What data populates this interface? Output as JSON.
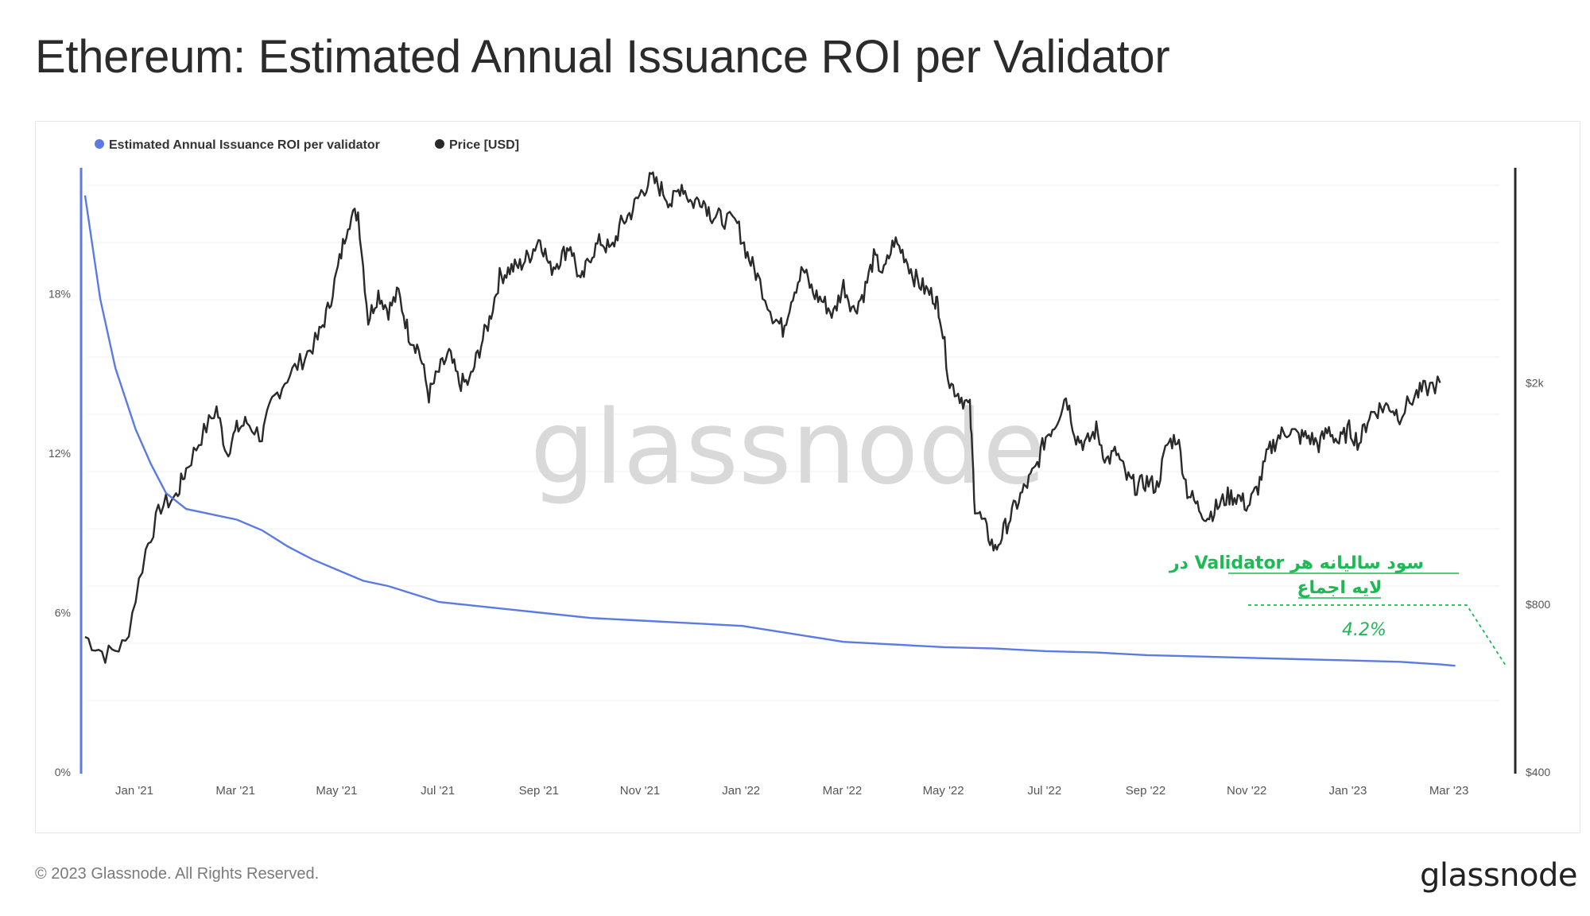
{
  "title": "Ethereum: Estimated Annual Issuance ROI per Validator",
  "footer": {
    "copyright": "© 2023 Glassnode. All Rights Reserved.",
    "logo": "glassnode"
  },
  "watermark": "glassnode",
  "annotation": {
    "line1": "سود سالیانه هر Validator در",
    "line2": "لایه اجماع",
    "value_label": "4.2%",
    "color": "#1db954"
  },
  "colors": {
    "roi": "#5b7be3",
    "price": "#2a2a2a",
    "grid": "#ececec",
    "watermark": "#d9d9d9"
  },
  "chart_data": {
    "type": "line",
    "title": "Ethereum: Estimated Annual Issuance ROI per Validator",
    "legend": [
      {
        "name": "Estimated Annual Issuance ROI per validator",
        "color": "#5b7be3"
      },
      {
        "name": "Price [USD]",
        "color": "#2a2a2a"
      }
    ],
    "x_labels": [
      "Jan '21",
      "Mar '21",
      "May '21",
      "Jul '21",
      "Sep '21",
      "Nov '21",
      "Jan '22",
      "Mar '22",
      "May '22",
      "Jul '22",
      "Sep '22",
      "Nov '22",
      "Jan '23",
      "Mar '23"
    ],
    "left_axis": {
      "ticks": [
        "0%",
        "6%",
        "12%",
        "18%"
      ],
      "range": [
        0,
        22
      ]
    },
    "right_axis": {
      "ticks": [
        "$400",
        "$800",
        "$2k"
      ],
      "values": [
        400,
        800,
        2000
      ],
      "range": [
        400,
        4600
      ],
      "scale": "log"
    },
    "series": [
      {
        "name": "Estimated Annual Issuance ROI per validator",
        "axis": "left",
        "points": [
          [
            0,
            21.7
          ],
          [
            0.3,
            17.8
          ],
          [
            0.6,
            15.2
          ],
          [
            1.0,
            12.9
          ],
          [
            1.3,
            11.6
          ],
          [
            1.6,
            10.5
          ],
          [
            2.0,
            9.9
          ],
          [
            2.5,
            9.7
          ],
          [
            3.0,
            9.5
          ],
          [
            3.5,
            9.1
          ],
          [
            4.0,
            8.5
          ],
          [
            4.5,
            8.0
          ],
          [
            5.0,
            7.6
          ],
          [
            5.5,
            7.2
          ],
          [
            6.0,
            7.0
          ],
          [
            6.5,
            6.7
          ],
          [
            7.0,
            6.4
          ],
          [
            8.0,
            6.2
          ],
          [
            9.0,
            6.0
          ],
          [
            10.0,
            5.8
          ],
          [
            11.0,
            5.7
          ],
          [
            12.0,
            5.6
          ],
          [
            13.0,
            5.5
          ],
          [
            14.0,
            5.2
          ],
          [
            15.0,
            4.9
          ],
          [
            16.0,
            4.8
          ],
          [
            17.0,
            4.7
          ],
          [
            18.0,
            4.65
          ],
          [
            19.0,
            4.55
          ],
          [
            20.0,
            4.5
          ],
          [
            21.0,
            4.4
          ],
          [
            22.0,
            4.35
          ],
          [
            23.0,
            4.3
          ],
          [
            24.0,
            4.25
          ],
          [
            25.0,
            4.2
          ],
          [
            26.0,
            4.15
          ],
          [
            26.8,
            4.05
          ],
          [
            27.1,
            4.0
          ]
        ]
      },
      {
        "name": "Price [USD]",
        "axis": "right",
        "points": [
          [
            0,
            700
          ],
          [
            0.4,
            650
          ],
          [
            0.8,
            680
          ],
          [
            1.2,
            1000
          ],
          [
            1.5,
            1200
          ],
          [
            1.8,
            1250
          ],
          [
            2.0,
            1400
          ],
          [
            2.3,
            1600
          ],
          [
            2.6,
            1800
          ],
          [
            2.8,
            1500
          ],
          [
            3.0,
            1650
          ],
          [
            3.2,
            1700
          ],
          [
            3.5,
            1600
          ],
          [
            3.7,
            1850
          ],
          [
            4.0,
            2050
          ],
          [
            4.3,
            2200
          ],
          [
            4.6,
            2400
          ],
          [
            4.8,
            2700
          ],
          [
            5.0,
            3200
          ],
          [
            5.2,
            3900
          ],
          [
            5.4,
            4050
          ],
          [
            5.6,
            2600
          ],
          [
            5.8,
            2900
          ],
          [
            6.0,
            2700
          ],
          [
            6.2,
            2900
          ],
          [
            6.4,
            2450
          ],
          [
            6.6,
            2300
          ],
          [
            6.8,
            1900
          ],
          [
            7.0,
            2100
          ],
          [
            7.2,
            2250
          ],
          [
            7.4,
            2000
          ],
          [
            7.6,
            2000
          ],
          [
            7.8,
            2300
          ],
          [
            8.0,
            2600
          ],
          [
            8.2,
            3100
          ],
          [
            8.4,
            3200
          ],
          [
            8.6,
            3250
          ],
          [
            8.8,
            3400
          ],
          [
            9.0,
            3650
          ],
          [
            9.2,
            3200
          ],
          [
            9.4,
            3350
          ],
          [
            9.6,
            3550
          ],
          [
            9.8,
            3000
          ],
          [
            10.0,
            3400
          ],
          [
            10.2,
            3600
          ],
          [
            10.4,
            3450
          ],
          [
            10.6,
            3850
          ],
          [
            10.8,
            4050
          ],
          [
            11.0,
            4400
          ],
          [
            11.2,
            4650
          ],
          [
            11.4,
            4450
          ],
          [
            11.6,
            4200
          ],
          [
            11.8,
            4550
          ],
          [
            12.0,
            4200
          ],
          [
            12.2,
            4300
          ],
          [
            12.4,
            4000
          ],
          [
            12.6,
            3950
          ],
          [
            12.9,
            3850
          ],
          [
            13.1,
            3400
          ],
          [
            13.3,
            3100
          ],
          [
            13.6,
            2650
          ],
          [
            13.8,
            2500
          ],
          [
            14.0,
            2900
          ],
          [
            14.2,
            3200
          ],
          [
            14.4,
            2900
          ],
          [
            14.6,
            2800
          ],
          [
            14.8,
            2650
          ],
          [
            15.0,
            3000
          ],
          [
            15.2,
            2700
          ],
          [
            15.4,
            2900
          ],
          [
            15.6,
            3350
          ],
          [
            15.8,
            3150
          ],
          [
            16.0,
            3600
          ],
          [
            16.2,
            3400
          ],
          [
            16.4,
            3100
          ],
          [
            16.6,
            2950
          ],
          [
            16.8,
            2850
          ],
          [
            16.9,
            2700
          ],
          [
            17.1,
            2000
          ],
          [
            17.3,
            1900
          ],
          [
            17.5,
            1800
          ],
          [
            17.6,
            1200
          ],
          [
            17.8,
            1100
          ],
          [
            18.0,
            1000
          ],
          [
            18.2,
            1100
          ],
          [
            18.4,
            1200
          ],
          [
            18.6,
            1300
          ],
          [
            18.8,
            1400
          ],
          [
            19.0,
            1600
          ],
          [
            19.2,
            1700
          ],
          [
            19.4,
            1900
          ],
          [
            19.6,
            1600
          ],
          [
            19.8,
            1550
          ],
          [
            20.0,
            1650
          ],
          [
            20.2,
            1450
          ],
          [
            20.4,
            1500
          ],
          [
            20.6,
            1350
          ],
          [
            20.8,
            1300
          ],
          [
            21.0,
            1330
          ],
          [
            21.2,
            1300
          ],
          [
            21.4,
            1550
          ],
          [
            21.6,
            1600
          ],
          [
            21.8,
            1280
          ],
          [
            22.0,
            1200
          ],
          [
            22.2,
            1150
          ],
          [
            22.4,
            1200
          ],
          [
            22.6,
            1250
          ],
          [
            22.8,
            1250
          ],
          [
            23.0,
            1200
          ],
          [
            23.2,
            1300
          ],
          [
            23.4,
            1500
          ],
          [
            23.6,
            1600
          ],
          [
            23.8,
            1650
          ],
          [
            24.0,
            1600
          ],
          [
            24.2,
            1600
          ],
          [
            24.4,
            1550
          ],
          [
            24.6,
            1650
          ],
          [
            24.8,
            1560
          ],
          [
            25.0,
            1650
          ],
          [
            25.2,
            1560
          ],
          [
            25.4,
            1750
          ],
          [
            25.6,
            1800
          ],
          [
            25.8,
            1820
          ],
          [
            26.0,
            1750
          ],
          [
            26.3,
            1900
          ],
          [
            26.5,
            1950
          ],
          [
            26.8,
            2000
          ]
        ]
      }
    ]
  }
}
